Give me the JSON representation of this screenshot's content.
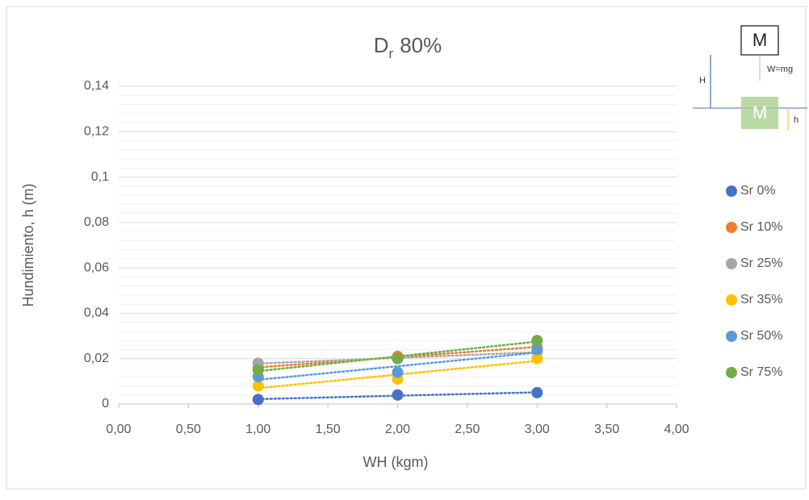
{
  "chart_data": {
    "type": "scatter",
    "title": [
      "D",
      "r",
      "80%"
    ],
    "x_label": "WH (kgm)",
    "y_label": "Hundimiento, h (m)",
    "xlim": [
      0,
      4
    ],
    "xticks": [
      {
        "value": 0,
        "label": "0,00"
      },
      {
        "value": 0.5,
        "label": "0,50"
      },
      {
        "value": 1,
        "label": "1,00"
      },
      {
        "value": 1.5,
        "label": "1,50"
      },
      {
        "value": 2,
        "label": "2,00"
      },
      {
        "value": 2.5,
        "label": "2,50"
      },
      {
        "value": 3,
        "label": "3,00"
      },
      {
        "value": 3.5,
        "label": "3,50"
      },
      {
        "value": 4,
        "label": "4,00"
      }
    ],
    "ylim": [
      0,
      0.14
    ],
    "yticks": [
      0,
      {
        "value": 0.02,
        "label": "0,02"
      },
      {
        "value": 0.04,
        "label": "0,04"
      },
      {
        "value": 0.06,
        "label": "0,06"
      },
      {
        "value": 0.08,
        "label": "0,08"
      },
      {
        "value": 0.1,
        "label": "0,1"
      },
      {
        "value": 0.12,
        "label": "0,12"
      },
      {
        "value": 0.14,
        "label": "0,14"
      }
    ],
    "grid": true,
    "minor_grid_per_major": 5,
    "trendline": "linear",
    "legend": "right",
    "x": [
      1,
      2,
      3
    ],
    "series": [
      {
        "name": "Sr 0%",
        "color": "#4472c4",
        "values": [
          0.002,
          0.004,
          0.005
        ]
      },
      {
        "name": "Sr 10%",
        "color": "#ed7d31",
        "values": [
          0.016,
          0.021,
          0.025
        ]
      },
      {
        "name": "Sr 25%",
        "color": "#a5a5a5",
        "values": [
          0.018,
          0.02,
          0.023
        ]
      },
      {
        "name": "Sr 35%",
        "color": "#ffc000",
        "values": [
          0.008,
          0.011,
          0.02
        ]
      },
      {
        "name": "Sr 50%",
        "color": "#5b9bd5",
        "values": [
          0.012,
          0.014,
          0.024
        ]
      },
      {
        "name": "Sr 75%",
        "color": "#70ad47",
        "values": [
          0.015,
          0.02,
          0.028
        ]
      }
    ]
  },
  "inset": {
    "top_box": "M",
    "weight": "W=mg",
    "height_label": "H",
    "bottom_box": "M",
    "sink_label": "h"
  }
}
